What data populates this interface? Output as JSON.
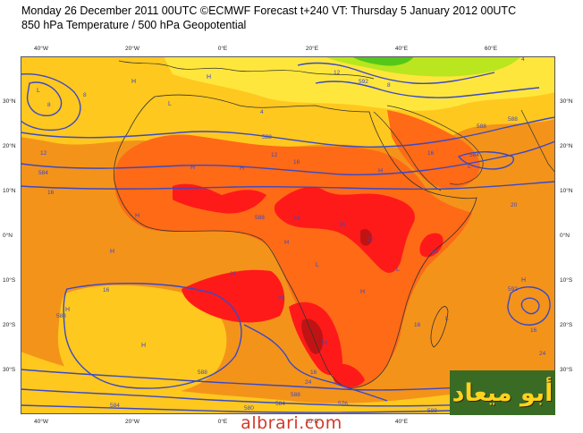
{
  "header": {
    "line1": "Monday 26 December 2011 00UTC ©ECMWF Forecast t+240 VT: Thursday 5 January 2012 00UTC",
    "line2": "850 hPa Temperature / 500 hPa Geopotential"
  },
  "lon_ticks": [
    "40°W",
    "20°W",
    "0°E",
    "20°E",
    "40°E",
    "60°E"
  ],
  "lat_ticks": [
    "30°N",
    "20°N",
    "10°N",
    "0°N",
    "10°S",
    "20°S",
    "30°S"
  ],
  "contour_labels": {
    "geopotential": [
      "588",
      "584",
      "588",
      "588",
      "592",
      "588",
      "592",
      "588",
      "584",
      "588",
      "584",
      "580",
      "576",
      "588",
      "588",
      "584"
    ],
    "temperature": [
      "8",
      "8",
      "12",
      "16",
      "16",
      "12",
      "4",
      "16",
      "16",
      "24",
      "20",
      "24",
      "20",
      "20",
      "20",
      "20",
      "16",
      "16",
      "24",
      "24",
      "16",
      "12",
      "8",
      "4"
    ]
  },
  "pressure_centres": [
    "H",
    "H",
    "H",
    "H",
    "H",
    "H",
    "H",
    "H",
    "H",
    "H",
    "H",
    "H",
    "L",
    "L",
    "L",
    "L",
    "L",
    "H",
    "L"
  ],
  "colors": {
    "ocean_warm": "#f4931a",
    "land_warm": "#ff6a16",
    "hot": "#ff1a1a",
    "hottest": "#c01414",
    "mild": "#ffc81e",
    "cool": "#ffe63c",
    "cold": "#b9e61e",
    "coldest": "#54c81a",
    "geopotential_line": "#3a49c7"
  },
  "logo": {
    "text": "أبو ميعاد"
  },
  "watermark": {
    "text": "albrari.com"
  }
}
